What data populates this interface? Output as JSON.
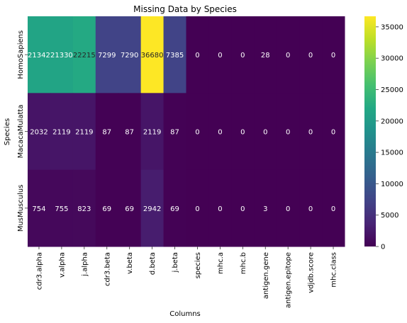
{
  "chart_data": {
    "type": "heatmap",
    "title": "Missing Data by Species",
    "xlabel": "Columns",
    "ylabel": "Species",
    "columns": [
      "cdr3.alpha",
      "v.alpha",
      "j.alpha",
      "cdr3.beta",
      "v.beta",
      "d.beta",
      "j.beta",
      "species",
      "mhc.a",
      "mhc.b",
      "antigen.gene",
      "antigen.epitope",
      "vdjdb.score",
      "mhc.class"
    ],
    "rows": [
      "HomoSapiens",
      "MacacaMulatta",
      "MusMusculus"
    ],
    "values": [
      [
        21342,
        21330,
        22215,
        7299,
        7290,
        36680,
        7385,
        0,
        0,
        0,
        28,
        0,
        0,
        0
      ],
      [
        2032,
        2119,
        2119,
        87,
        87,
        2119,
        87,
        0,
        0,
        0,
        0,
        0,
        0,
        0
      ],
      [
        754,
        755,
        823,
        69,
        69,
        2942,
        69,
        0,
        0,
        0,
        3,
        0,
        0,
        0
      ]
    ],
    "colormap": "viridis",
    "vmin": 0,
    "vmax": 36680,
    "colorbar_ticks": [
      0,
      5000,
      10000,
      15000,
      20000,
      25000,
      30000,
      35000
    ],
    "annotations": true
  }
}
